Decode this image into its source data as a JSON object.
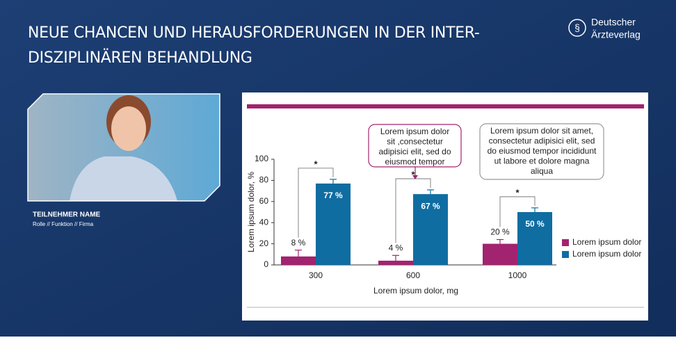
{
  "header": {
    "title_lines": [
      "NEUE CHANCEN UND HERAUSFORDERUNGEN IN DER INTER-",
      "DISZIPLINÄREN BEHANDLUNG"
    ],
    "logo_lines": [
      "Deutscher",
      "Ärzteverlag"
    ]
  },
  "participant": {
    "name": "TEILNEHMER NAME",
    "role": "Rolle // Funktion // Firma"
  },
  "chart_data": {
    "type": "bar",
    "categories": [
      "300",
      "600",
      "1000"
    ],
    "series": [
      {
        "name": "Lorem ipsum dolor",
        "color": "#a2236f",
        "values": [
          8,
          4,
          20
        ],
        "value_labels": [
          "8 %",
          "4 %",
          "20 %"
        ],
        "errors": [
          6,
          5,
          4
        ]
      },
      {
        "name": "Lorem ipsum dolor",
        "color": "#0f6da2",
        "values": [
          77,
          67,
          50
        ],
        "value_labels": [
          "77 %",
          "67 %",
          "50 %"
        ],
        "errors": [
          4,
          4,
          4
        ]
      }
    ],
    "significance": [
      "*",
      "*",
      "*"
    ],
    "xlabel": "Lorem ipsum dolor, mg",
    "ylabel": "Lorem ipsum dolor, %",
    "ylim": [
      0,
      100
    ],
    "yticks": [
      0,
      20,
      40,
      60,
      80,
      100
    ],
    "callouts": [
      {
        "lines": [
          "Lorem ipsum dolor",
          "sit ,consectetur",
          "adipisici elit, sed do",
          "eiusmod tempor"
        ]
      },
      {
        "lines": [
          "Lorem ipsum dolor sit amet,",
          "consectetur adipisici elit, sed",
          "do eiusmod tempor incididunt",
          "ut labore et dolore magna",
          "aliqua"
        ]
      }
    ],
    "legend": "right"
  }
}
